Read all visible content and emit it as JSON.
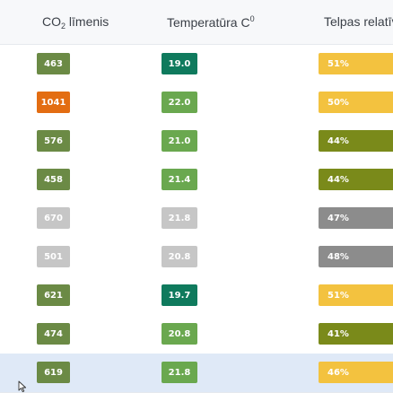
{
  "columns": {
    "co2_prefix": "CO",
    "co2_sub": "2",
    "co2_suffix": " līmenis",
    "temp_label": "Temperatūra C",
    "temp_sup": "0",
    "hum_label": "Telpas relatīv"
  },
  "colors": {
    "dark_green": "#6b8a45",
    "orange": "#e36d12",
    "gray": "#c6c6c6",
    "teal": "#0f7a5d",
    "mid_green": "#6aa84f",
    "yellow": "#f3c23f",
    "olive": "#7a8a1a",
    "dark_gray": "#8c8c8c"
  },
  "rows": [
    {
      "co2": "463",
      "co2_color": "#6b8a45",
      "temp": "19.0",
      "temp_color": "#0f7a5d",
      "hum": "51%",
      "hum_color": "#f3c23f"
    },
    {
      "co2": "1041",
      "co2_color": "#e36d12",
      "temp": "22.0",
      "temp_color": "#6aa84f",
      "hum": "50%",
      "hum_color": "#f3c23f"
    },
    {
      "co2": "576",
      "co2_color": "#6b8a45",
      "temp": "21.0",
      "temp_color": "#6aa84f",
      "hum": "44%",
      "hum_color": "#7a8a1a"
    },
    {
      "co2": "458",
      "co2_color": "#6b8a45",
      "temp": "21.4",
      "temp_color": "#6aa84f",
      "hum": "44%",
      "hum_color": "#7a8a1a"
    },
    {
      "co2": "670",
      "co2_color": "#c6c6c6",
      "temp": "21.8",
      "temp_color": "#c6c6c6",
      "hum": "47%",
      "hum_color": "#8c8c8c"
    },
    {
      "co2": "501",
      "co2_color": "#c6c6c6",
      "temp": "20.8",
      "temp_color": "#c6c6c6",
      "hum": "48%",
      "hum_color": "#8c8c8c"
    },
    {
      "co2": "621",
      "co2_color": "#6b8a45",
      "temp": "19.7",
      "temp_color": "#0f7a5d",
      "hum": "51%",
      "hum_color": "#f3c23f"
    },
    {
      "co2": "474",
      "co2_color": "#6b8a45",
      "temp": "20.8",
      "temp_color": "#6aa84f",
      "hum": "41%",
      "hum_color": "#7a8a1a"
    },
    {
      "co2": "619",
      "co2_color": "#6b8a45",
      "temp": "21.8",
      "temp_color": "#6aa84f",
      "hum": "46%",
      "hum_color": "#f3c23f"
    }
  ]
}
